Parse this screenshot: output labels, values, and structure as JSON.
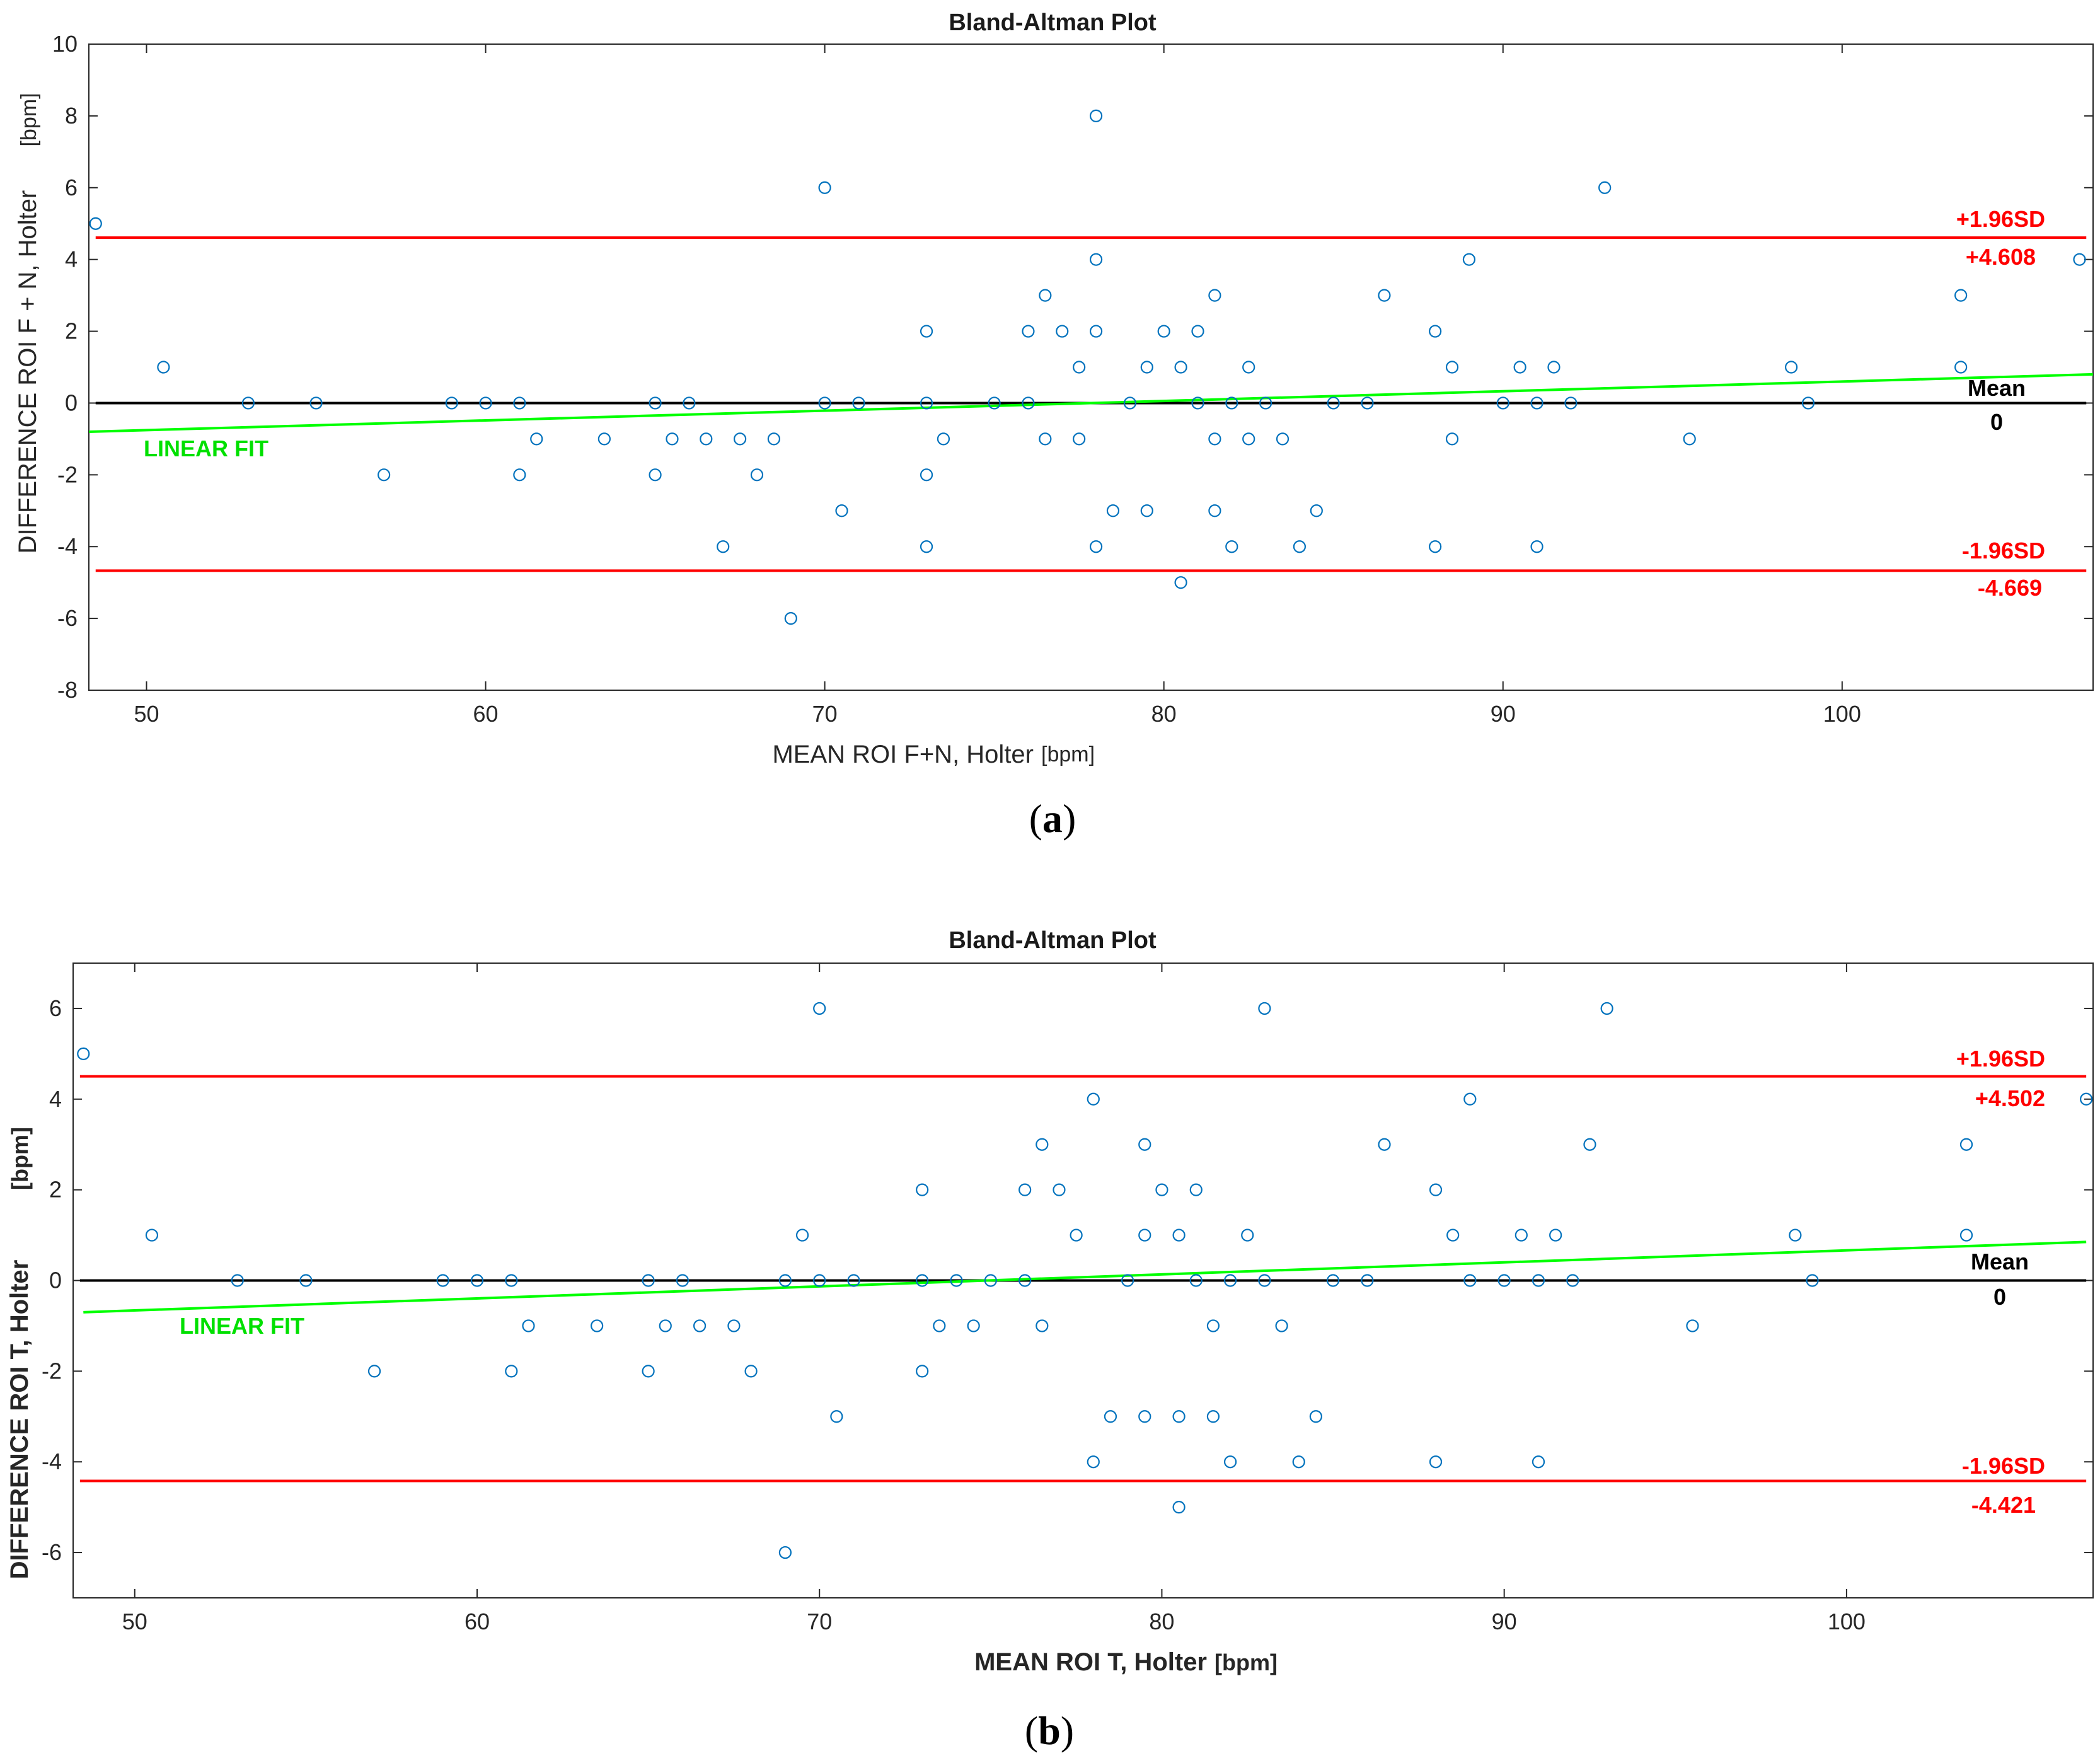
{
  "colors": {
    "point": "#0072BD",
    "sd_line": "#ff0000",
    "mean_line": "#000000",
    "fit_line": "#00ff00",
    "axis": "#262626"
  },
  "chart_data": [
    {
      "id": "a",
      "type": "scatter",
      "panel_label": "a",
      "title": "Bland-Altman Plot",
      "xlabel": "MEAN ROI F+N, Holter",
      "xlabel_unit": "[bpm]",
      "ylabel": "DIFFERENCE ROI F + N, Holter",
      "ylabel_unit": "[bpm]",
      "xlim": [
        48.3,
        107.4
      ],
      "ylim": [
        -8,
        10
      ],
      "xticks": [
        50,
        60,
        70,
        80,
        90,
        100
      ],
      "yticks": [
        -8,
        -6,
        -4,
        -2,
        0,
        2,
        4,
        6,
        8,
        10
      ],
      "grid": false,
      "upper_sd": {
        "label": "+1.96SD",
        "value_label": "+4.608",
        "value": 4.608
      },
      "lower_sd": {
        "label": "-1.96SD",
        "value_label": "-4.669",
        "value": -4.669
      },
      "mean": {
        "label": "Mean",
        "value_label": "0",
        "value": 0
      },
      "fit": {
        "label": "LINEAR FIT",
        "x": [
          48.3,
          107.4
        ],
        "y": [
          -0.8,
          0.8
        ]
      },
      "points": [
        [
          48.5,
          5
        ],
        [
          50.5,
          1
        ],
        [
          53,
          0
        ],
        [
          55,
          0
        ],
        [
          57,
          -2
        ],
        [
          59,
          0
        ],
        [
          60,
          0
        ],
        [
          61,
          0
        ],
        [
          61,
          -2
        ],
        [
          61.5,
          -1
        ],
        [
          63.5,
          -1
        ],
        [
          65,
          0
        ],
        [
          65,
          -2
        ],
        [
          65.5,
          -1
        ],
        [
          66,
          0
        ],
        [
          66.5,
          -1
        ],
        [
          67,
          -4
        ],
        [
          67.5,
          -1
        ],
        [
          68,
          -2
        ],
        [
          68.5,
          -1
        ],
        [
          69,
          -6
        ],
        [
          70,
          6
        ],
        [
          70,
          0
        ],
        [
          70.5,
          -3
        ],
        [
          71,
          0
        ],
        [
          73,
          2
        ],
        [
          73,
          0
        ],
        [
          73,
          -2
        ],
        [
          73,
          -4
        ],
        [
          73.5,
          -1
        ],
        [
          75,
          0
        ],
        [
          76,
          2
        ],
        [
          76,
          0
        ],
        [
          76.5,
          3
        ],
        [
          76.5,
          -1
        ],
        [
          77,
          2
        ],
        [
          77.5,
          1
        ],
        [
          77.5,
          -1
        ],
        [
          78,
          8
        ],
        [
          78,
          4
        ],
        [
          78,
          2
        ],
        [
          78,
          -4
        ],
        [
          78.5,
          -3
        ],
        [
          79,
          0
        ],
        [
          79.5,
          1
        ],
        [
          79.5,
          -3
        ],
        [
          80,
          2
        ],
        [
          80.5,
          1
        ],
        [
          80.5,
          -5
        ],
        [
          81,
          2
        ],
        [
          81,
          0
        ],
        [
          81.5,
          3
        ],
        [
          81.5,
          -1
        ],
        [
          81.5,
          -3
        ],
        [
          82,
          0
        ],
        [
          82,
          -4
        ],
        [
          82.5,
          1
        ],
        [
          82.5,
          -1
        ],
        [
          83,
          0
        ],
        [
          83.5,
          -1
        ],
        [
          84,
          -4
        ],
        [
          84.5,
          -3
        ],
        [
          85,
          0
        ],
        [
          86,
          0
        ],
        [
          86.5,
          3
        ],
        [
          88,
          2
        ],
        [
          88,
          -4
        ],
        [
          88.5,
          1
        ],
        [
          88.5,
          -1
        ],
        [
          89,
          4
        ],
        [
          90,
          0
        ],
        [
          90.5,
          1
        ],
        [
          91,
          0
        ],
        [
          91,
          -4
        ],
        [
          91.5,
          1
        ],
        [
          92,
          0
        ],
        [
          93,
          6
        ],
        [
          95.5,
          -1
        ],
        [
          98.5,
          1
        ],
        [
          99,
          0
        ],
        [
          103.5,
          3
        ],
        [
          103.5,
          1
        ],
        [
          107,
          4
        ]
      ]
    },
    {
      "id": "b",
      "type": "scatter",
      "panel_label": "b",
      "title": "Bland-Altman Plot",
      "xlabel": "MEAN ROI T, Holter",
      "xlabel_unit": "[bpm]",
      "ylabel": "DIFFERENCE ROI T, Holter",
      "ylabel_unit": "[bpm]",
      "xlim": [
        48.2,
        107.2
      ],
      "ylim": [
        -7,
        7
      ],
      "xticks": [
        50,
        60,
        70,
        80,
        90,
        100
      ],
      "yticks": [
        -6,
        -4,
        -2,
        0,
        2,
        4,
        6
      ],
      "grid": false,
      "upper_sd": {
        "label": "+1.96SD",
        "value_label": "+4.502",
        "value": 4.502
      },
      "lower_sd": {
        "label": "-1.96SD",
        "value_label": "-4.421",
        "value": -4.421
      },
      "mean": {
        "label": "Mean",
        "value_label": "0",
        "value": 0
      },
      "fit": {
        "label": "LINEAR FIT",
        "x": [
          48.5,
          107
        ],
        "y": [
          -0.7,
          0.85
        ]
      },
      "points": [
        [
          48.5,
          5
        ],
        [
          50.5,
          1
        ],
        [
          53,
          0
        ],
        [
          55,
          0
        ],
        [
          57,
          -2
        ],
        [
          59,
          0
        ],
        [
          60,
          0
        ],
        [
          61,
          0
        ],
        [
          61,
          -2
        ],
        [
          61.5,
          -1
        ],
        [
          63.5,
          -1
        ],
        [
          65,
          0
        ],
        [
          65,
          -2
        ],
        [
          65.5,
          -1
        ],
        [
          66,
          0
        ],
        [
          66.5,
          -1
        ],
        [
          67.5,
          -1
        ],
        [
          68,
          -2
        ],
        [
          69,
          0
        ],
        [
          69,
          -6
        ],
        [
          69.5,
          1
        ],
        [
          70,
          6
        ],
        [
          70,
          0
        ],
        [
          70.5,
          -3
        ],
        [
          71,
          0
        ],
        [
          73,
          2
        ],
        [
          73,
          0
        ],
        [
          73,
          -2
        ],
        [
          73.5,
          -1
        ],
        [
          74,
          0
        ],
        [
          74.5,
          -1
        ],
        [
          75,
          0
        ],
        [
          76,
          2
        ],
        [
          76,
          0
        ],
        [
          76.5,
          3
        ],
        [
          76.5,
          -1
        ],
        [
          77,
          2
        ],
        [
          77.5,
          1
        ],
        [
          78,
          4
        ],
        [
          78,
          -4
        ],
        [
          78.5,
          -3
        ],
        [
          79,
          0
        ],
        [
          79.5,
          3
        ],
        [
          79.5,
          1
        ],
        [
          79.5,
          -3
        ],
        [
          80,
          2
        ],
        [
          80.5,
          1
        ],
        [
          80.5,
          -3
        ],
        [
          80.5,
          -5
        ],
        [
          81,
          2
        ],
        [
          81,
          0
        ],
        [
          81.5,
          -1
        ],
        [
          81.5,
          -3
        ],
        [
          82,
          0
        ],
        [
          82,
          -4
        ],
        [
          82.5,
          1
        ],
        [
          83,
          6
        ],
        [
          83,
          0
        ],
        [
          83.5,
          -1
        ],
        [
          84,
          -4
        ],
        [
          84.5,
          -3
        ],
        [
          85,
          0
        ],
        [
          86,
          0
        ],
        [
          86.5,
          3
        ],
        [
          88,
          2
        ],
        [
          88,
          -4
        ],
        [
          88.5,
          1
        ],
        [
          89,
          4
        ],
        [
          89,
          0
        ],
        [
          90,
          0
        ],
        [
          90.5,
          1
        ],
        [
          91,
          0
        ],
        [
          91,
          -4
        ],
        [
          91.5,
          1
        ],
        [
          92,
          0
        ],
        [
          92.5,
          3
        ],
        [
          93,
          6
        ],
        [
          95.5,
          -1
        ],
        [
          98.5,
          1
        ],
        [
          99,
          0
        ],
        [
          103.5,
          3
        ],
        [
          103.5,
          1
        ],
        [
          107,
          4
        ]
      ]
    }
  ]
}
